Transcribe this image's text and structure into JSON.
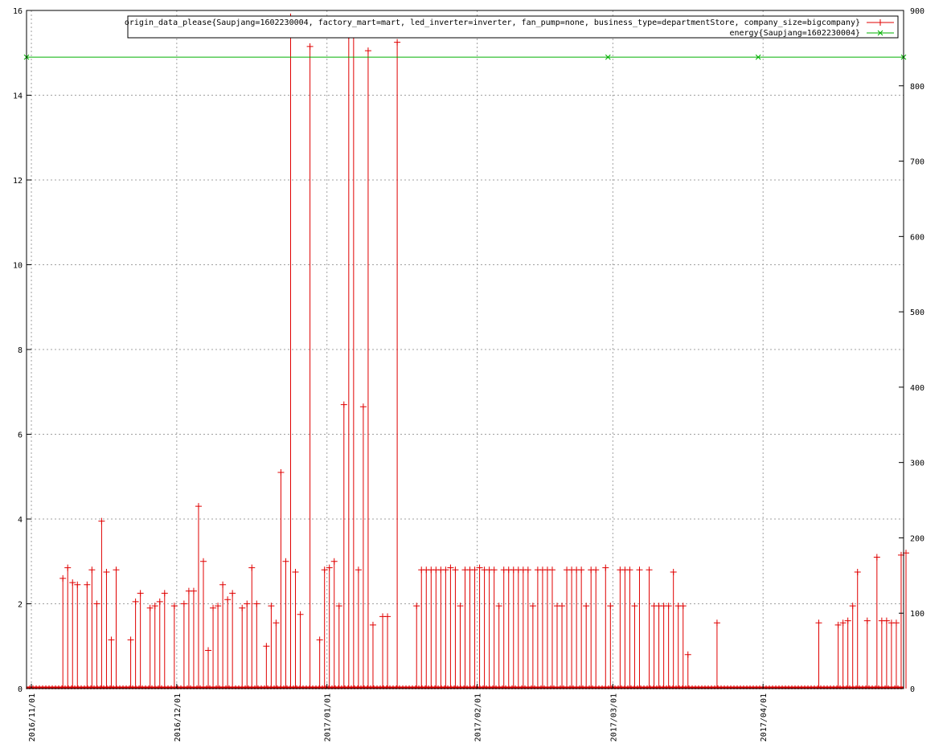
{
  "chart_data": {
    "type": "line",
    "title": "",
    "xlabel": "",
    "ylabel": "",
    "y2label": "",
    "x_range": [
      "2016-10-31",
      "2017-04-30"
    ],
    "ylim": [
      0,
      16
    ],
    "y2lim": [
      0,
      900
    ],
    "grid": true,
    "legend_position": "top-right",
    "x_ticks": [
      "2016/11/01",
      "2016/12/01",
      "2017/01/01",
      "2017/02/01",
      "2017/03/01",
      "2017/04/01"
    ],
    "y_ticks": [
      "0",
      "2",
      "4",
      "6",
      "8",
      "10",
      "12",
      "14",
      "16"
    ],
    "y2_ticks": [
      "0",
      "100",
      "200",
      "300",
      "400",
      "500",
      "600",
      "700",
      "800",
      "900"
    ],
    "colors": {
      "series1": "#e00000",
      "series2": "#00b000",
      "grid": "#a0a0a0",
      "axis": "#000000"
    },
    "series": [
      {
        "name": "origin_data_please{Saupjang=1602230004, factory_mart=mart, led_inverter=inverter, fan_pump=none, business_type=departmentStore, company_size=bigcompany}",
        "axis": "y1",
        "marker": "plus",
        "spikes": [
          [
            "2016-11-07",
            2.6
          ],
          [
            "2016-11-08",
            2.85
          ],
          [
            "2016-11-09",
            2.5
          ],
          [
            "2016-11-10",
            2.45
          ],
          [
            "2016-11-12",
            2.45
          ],
          [
            "2016-11-13",
            2.8
          ],
          [
            "2016-11-14",
            2.0
          ],
          [
            "2016-11-15",
            3.95
          ],
          [
            "2016-11-16",
            2.75
          ],
          [
            "2016-11-17",
            1.15
          ],
          [
            "2016-11-18",
            2.8
          ],
          [
            "2016-11-21",
            1.15
          ],
          [
            "2016-11-22",
            2.05
          ],
          [
            "2016-11-23",
            2.25
          ],
          [
            "2016-11-25",
            1.9
          ],
          [
            "2016-11-26",
            1.95
          ],
          [
            "2016-11-27",
            2.05
          ],
          [
            "2016-11-28",
            2.25
          ],
          [
            "2016-11-30",
            1.95
          ],
          [
            "2016-12-02",
            2.0
          ],
          [
            "2016-12-03",
            2.3
          ],
          [
            "2016-12-04",
            2.3
          ],
          [
            "2016-12-05",
            4.3
          ],
          [
            "2016-12-06",
            3.0
          ],
          [
            "2016-12-07",
            0.9
          ],
          [
            "2016-12-08",
            1.9
          ],
          [
            "2016-12-09",
            1.95
          ],
          [
            "2016-12-10",
            2.45
          ],
          [
            "2016-12-11",
            2.1
          ],
          [
            "2016-12-12",
            2.25
          ],
          [
            "2016-12-14",
            1.9
          ],
          [
            "2016-12-15",
            2.0
          ],
          [
            "2016-12-16",
            2.85
          ],
          [
            "2016-12-17",
            2.0
          ],
          [
            "2016-12-19",
            1.0
          ],
          [
            "2016-12-20",
            1.95
          ],
          [
            "2016-12-21",
            1.55
          ],
          [
            "2016-12-22",
            5.1
          ],
          [
            "2016-12-23",
            3.0
          ],
          [
            "2016-12-24",
            15.85
          ],
          [
            "2016-12-25",
            2.75
          ],
          [
            "2016-12-26",
            1.75
          ],
          [
            "2016-12-28",
            15.15
          ],
          [
            "2016-12-30",
            1.15
          ],
          [
            "2016-12-31",
            2.8
          ],
          [
            "2017-01-01",
            2.85
          ],
          [
            "2017-01-02",
            3.0
          ],
          [
            "2017-01-03",
            1.95
          ],
          [
            "2017-01-04",
            6.7
          ],
          [
            "2017-01-05",
            15.4
          ],
          [
            "2017-01-06",
            15.5
          ],
          [
            "2017-01-07",
            2.8
          ],
          [
            "2017-01-08",
            6.65
          ],
          [
            "2017-01-09",
            15.05
          ],
          [
            "2017-01-10",
            1.5
          ],
          [
            "2017-01-12",
            1.7
          ],
          [
            "2017-01-13",
            1.7
          ],
          [
            "2017-01-15",
            15.25
          ],
          [
            "2017-01-19",
            1.95
          ],
          [
            "2017-01-20",
            2.8
          ],
          [
            "2017-01-21",
            2.8
          ],
          [
            "2017-01-22",
            2.8
          ],
          [
            "2017-01-23",
            2.8
          ],
          [
            "2017-01-24",
            2.8
          ],
          [
            "2017-01-25",
            2.8
          ],
          [
            "2017-01-26",
            2.85
          ],
          [
            "2017-01-27",
            2.8
          ],
          [
            "2017-01-28",
            1.95
          ],
          [
            "2017-01-29",
            2.8
          ],
          [
            "2017-01-30",
            2.8
          ],
          [
            "2017-01-31",
            2.8
          ],
          [
            "2017-02-01",
            2.85
          ],
          [
            "2017-02-02",
            2.8
          ],
          [
            "2017-02-03",
            2.8
          ],
          [
            "2017-02-04",
            2.8
          ],
          [
            "2017-02-05",
            1.95
          ],
          [
            "2017-02-06",
            2.8
          ],
          [
            "2017-02-07",
            2.8
          ],
          [
            "2017-02-08",
            2.8
          ],
          [
            "2017-02-09",
            2.8
          ],
          [
            "2017-02-10",
            2.8
          ],
          [
            "2017-02-11",
            2.8
          ],
          [
            "2017-02-12",
            1.95
          ],
          [
            "2017-02-13",
            2.8
          ],
          [
            "2017-02-14",
            2.8
          ],
          [
            "2017-02-15",
            2.8
          ],
          [
            "2017-02-16",
            2.8
          ],
          [
            "2017-02-17",
            1.95
          ],
          [
            "2017-02-18",
            1.95
          ],
          [
            "2017-02-19",
            2.8
          ],
          [
            "2017-02-20",
            2.8
          ],
          [
            "2017-02-21",
            2.8
          ],
          [
            "2017-02-22",
            2.8
          ],
          [
            "2017-02-23",
            1.95
          ],
          [
            "2017-02-24",
            2.8
          ],
          [
            "2017-02-25",
            2.8
          ],
          [
            "2017-02-27",
            2.85
          ],
          [
            "2017-02-28",
            1.95
          ],
          [
            "2017-03-02",
            2.8
          ],
          [
            "2017-03-03",
            2.8
          ],
          [
            "2017-03-04",
            2.8
          ],
          [
            "2017-03-05",
            1.95
          ],
          [
            "2017-03-06",
            2.8
          ],
          [
            "2017-03-08",
            2.8
          ],
          [
            "2017-03-09",
            1.95
          ],
          [
            "2017-03-10",
            1.95
          ],
          [
            "2017-03-11",
            1.95
          ],
          [
            "2017-03-12",
            1.95
          ],
          [
            "2017-03-13",
            2.75
          ],
          [
            "2017-03-14",
            1.95
          ],
          [
            "2017-03-15",
            1.95
          ],
          [
            "2017-03-16",
            0.8
          ],
          [
            "2017-03-22",
            1.55
          ],
          [
            "2017-04-12",
            1.55
          ],
          [
            "2017-04-16",
            1.5
          ],
          [
            "2017-04-17",
            1.55
          ],
          [
            "2017-04-18",
            1.6
          ],
          [
            "2017-04-19",
            1.95
          ],
          [
            "2017-04-20",
            2.75
          ],
          [
            "2017-04-22",
            1.6
          ],
          [
            "2017-04-24",
            3.1
          ],
          [
            "2017-04-25",
            1.6
          ],
          [
            "2017-04-26",
            1.6
          ],
          [
            "2017-04-27",
            1.55
          ],
          [
            "2017-04-28",
            1.55
          ],
          [
            "2017-04-29",
            3.15
          ],
          [
            "2017-04-30",
            3.2
          ]
        ]
      },
      {
        "name": "energy{Saupjang=1602230004}",
        "axis": "y2",
        "marker": "cross",
        "points": [
          [
            "2016-10-31",
            838
          ],
          [
            "2017-02-28",
            838
          ],
          [
            "2017-03-31",
            838
          ],
          [
            "2017-04-30",
            838
          ]
        ]
      }
    ]
  }
}
